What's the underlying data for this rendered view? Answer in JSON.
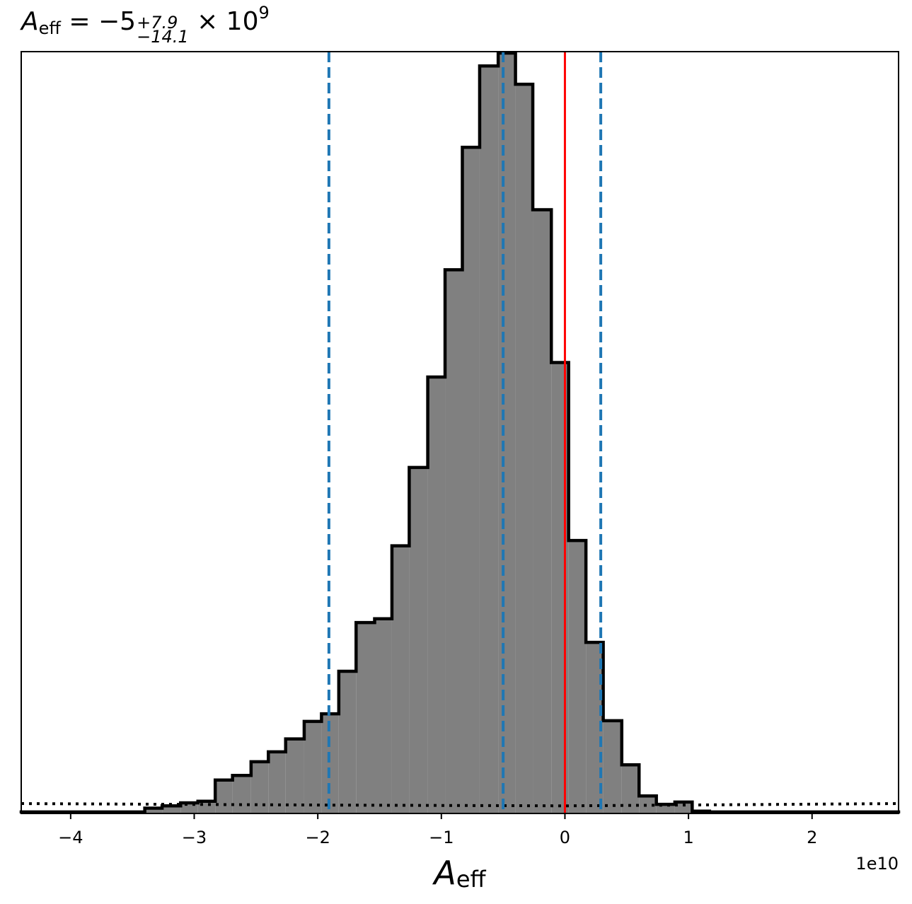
{
  "title": {
    "symbol": "A",
    "subscript": "eff",
    "equals": " = −5",
    "upper": "+7.9",
    "lower": "−14.1",
    "times": " × 10",
    "exponent": "9"
  },
  "chart_data": {
    "type": "histogram",
    "title": "A_eff = −5 (+7.9 / −14.1) × 10^9",
    "xlabel": "A_eff",
    "x_offset_label": "1e10",
    "xlim": [
      -4.4,
      2.7
    ],
    "ylim": [
      0,
      1
    ],
    "x_ticks": [
      -4,
      -3,
      -2,
      -1,
      0,
      1,
      2
    ],
    "x_tick_labels": [
      "−4",
      "−3",
      "−2",
      "−1",
      "0",
      "1",
      "2"
    ],
    "y_ticks_visible": false,
    "histogram": {
      "fill_color": "#808080",
      "edge_color": "#000000",
      "bin_edges": [
        -4.4,
        -3.4,
        -3.26,
        -3.11,
        -2.97,
        -2.83,
        -2.69,
        -2.54,
        -2.4,
        -2.26,
        -2.11,
        -1.97,
        -1.83,
        -1.69,
        -1.54,
        -1.4,
        -1.26,
        -1.11,
        -0.97,
        -0.83,
        -0.69,
        -0.54,
        -0.4,
        -0.26,
        -0.11,
        0.03,
        0.17,
        0.31,
        0.46,
        0.6,
        0.74,
        0.89,
        1.03,
        1.17,
        1.31,
        2.7
      ],
      "heights": [
        0.002,
        0.007,
        0.01,
        0.014,
        0.016,
        0.044,
        0.05,
        0.068,
        0.081,
        0.098,
        0.121,
        0.131,
        0.187,
        0.251,
        0.256,
        0.352,
        0.455,
        0.574,
        0.715,
        0.876,
        0.983,
        1.0,
        0.959,
        0.794,
        0.593,
        0.359,
        0.225,
        0.122,
        0.064,
        0.023,
        0.012,
        0.015,
        0.003,
        0.002,
        0.002
      ]
    },
    "vertical_lines": [
      {
        "x": -1.91,
        "color": "#1f77b4",
        "style": "dashed"
      },
      {
        "x": -0.5,
        "color": "#1f77b4",
        "style": "dashed"
      },
      {
        "x": 0.29,
        "color": "#1f77b4",
        "style": "dashed"
      },
      {
        "x": 0.0,
        "color": "#ff0000",
        "style": "solid"
      }
    ],
    "prior_line": {
      "color": "#000000",
      "style": "dotted",
      "points": [
        [
          -4.4,
          0.013
        ],
        [
          -1.91,
          0.011
        ],
        [
          0.0,
          0.01
        ],
        [
          2.7,
          0.013
        ]
      ]
    },
    "grid": false
  }
}
